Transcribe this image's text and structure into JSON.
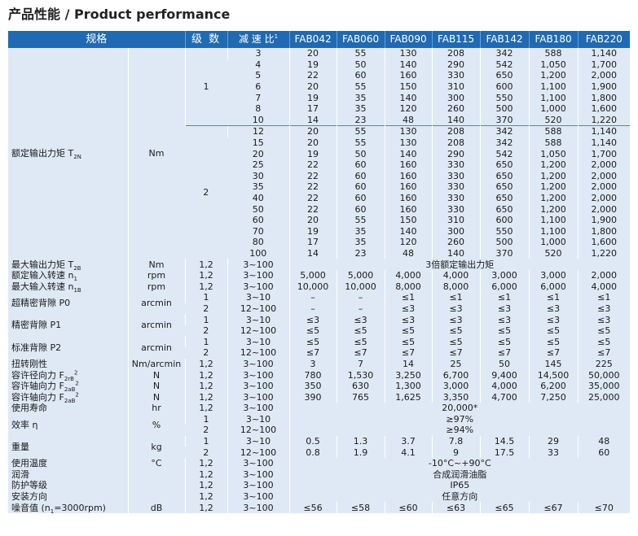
{
  "title": "产品性能 / Product performance",
  "headers": [
    "规格",
    "级 数",
    "减 速 比",
    "FAB042",
    "FAB060",
    "FAB090",
    "FAB115",
    "FAB142",
    "FAB180",
    "FAB220"
  ],
  "ratio_superscript": "1",
  "torque": {
    "param": "额定输出力矩 T",
    "param_sub": "2N",
    "unit": "Nm",
    "stage1": "1",
    "stage2": "2",
    "rows": [
      [
        "3",
        "20",
        "55",
        "130",
        "208",
        "342",
        "588",
        "1,140"
      ],
      [
        "4",
        "19",
        "50",
        "140",
        "290",
        "542",
        "1,050",
        "1,700"
      ],
      [
        "5",
        "22",
        "60",
        "160",
        "330",
        "650",
        "1,200",
        "2,000"
      ],
      [
        "6",
        "20",
        "55",
        "150",
        "310",
        "600",
        "1,100",
        "1,900"
      ],
      [
        "7",
        "19",
        "35",
        "140",
        "300",
        "550",
        "1,100",
        "1,800"
      ],
      [
        "8",
        "17",
        "35",
        "120",
        "260",
        "500",
        "1,000",
        "1,600"
      ],
      [
        "10",
        "14",
        "23",
        "48",
        "140",
        "370",
        "520",
        "1,220"
      ],
      [
        "12",
        "20",
        "55",
        "130",
        "208",
        "342",
        "588",
        "1,140"
      ],
      [
        "15",
        "20",
        "55",
        "130",
        "208",
        "342",
        "588",
        "1,140"
      ],
      [
        "20",
        "19",
        "50",
        "140",
        "290",
        "542",
        "1,050",
        "1,700"
      ],
      [
        "25",
        "22",
        "60",
        "160",
        "330",
        "650",
        "1,200",
        "2,000"
      ],
      [
        "30",
        "22",
        "60",
        "160",
        "330",
        "650",
        "1,200",
        "2,000"
      ],
      [
        "35",
        "22",
        "60",
        "160",
        "330",
        "650",
        "1,200",
        "2,000"
      ],
      [
        "40",
        "22",
        "60",
        "160",
        "330",
        "650",
        "1,200",
        "2,000"
      ],
      [
        "50",
        "22",
        "60",
        "160",
        "330",
        "650",
        "1,200",
        "2,000"
      ],
      [
        "60",
        "20",
        "55",
        "150",
        "310",
        "600",
        "1,100",
        "1,900"
      ],
      [
        "70",
        "19",
        "35",
        "140",
        "300",
        "550",
        "1,100",
        "1,800"
      ],
      [
        "80",
        "17",
        "35",
        "120",
        "260",
        "500",
        "1,000",
        "1,600"
      ],
      [
        "100",
        "14",
        "23",
        "48",
        "140",
        "370",
        "520",
        "1,220"
      ]
    ]
  },
  "max_torque": {
    "param": "最大输出力矩 T",
    "param_sub": "2B",
    "unit": "Nm",
    "stage": "1,2",
    "ratio": "3~100",
    "value": "3倍额定输出力矩"
  },
  "rated_speed": {
    "param": "额定输入转速 n",
    "param_sub": "1",
    "unit": "rpm",
    "stage": "1,2",
    "ratio": "3~100",
    "values": [
      "5,000",
      "5,000",
      "4,000",
      "4,000",
      "3,000",
      "3,000",
      "2,000"
    ]
  },
  "max_speed": {
    "param": "最大输入转速 n",
    "param_sub": "1B",
    "unit": "rpm",
    "stage": "1,2",
    "ratio": "3~100",
    "values": [
      "10,000",
      "10,000",
      "8,000",
      "8,000",
      "6,000",
      "6,000",
      "4,000"
    ]
  },
  "backlash_p0": {
    "param": "超精密背隙 P0",
    "unit": "arcmin",
    "rows": [
      {
        "stage": "1",
        "ratio": "3~10",
        "values": [
          "–",
          "–",
          "≤1",
          "≤1",
          "≤1",
          "≤1",
          "≤1"
        ]
      },
      {
        "stage": "2",
        "ratio": "12~100",
        "values": [
          "–",
          "–",
          "≤3",
          "≤3",
          "≤3",
          "≤3",
          "≤3"
        ]
      }
    ]
  },
  "backlash_p1": {
    "param": "精密背隙 P1",
    "unit": "arcmin",
    "rows": [
      {
        "stage": "1",
        "ratio": "3~10",
        "values": [
          "≤3",
          "≤3",
          "≤3",
          "≤3",
          "≤3",
          "≤3",
          "≤3"
        ]
      },
      {
        "stage": "2",
        "ratio": "12~100",
        "values": [
          "≤5",
          "≤5",
          "≤5",
          "≤5",
          "≤5",
          "≤5",
          "≤5"
        ]
      }
    ]
  },
  "backlash_p2": {
    "param": "标准背隙 P2",
    "unit": "arcmin",
    "rows": [
      {
        "stage": "1",
        "ratio": "3~10",
        "values": [
          "≤5",
          "≤5",
          "≤5",
          "≤5",
          "≤5",
          "≤5",
          "≤5"
        ]
      },
      {
        "stage": "2",
        "ratio": "12~100",
        "values": [
          "≤7",
          "≤7",
          "≤7",
          "≤7",
          "≤7",
          "≤7",
          "≤7"
        ]
      }
    ]
  },
  "rigidity": {
    "param": "扭转刚性",
    "unit": "Nm/arcmin",
    "stage": "1,2",
    "ratio": "3~100",
    "values": [
      "3",
      "7",
      "14",
      "25",
      "50",
      "145",
      "225"
    ]
  },
  "radial_force": {
    "param": "容许径向力 F",
    "param_sub": "2rB",
    "param_sup": "2",
    "unit": "N",
    "stage": "1,2",
    "ratio": "3~100",
    "values": [
      "780",
      "1,530",
      "3,250",
      "6,700",
      "9,400",
      "14,500",
      "50,000"
    ]
  },
  "axial_force1": {
    "param": "容许轴向力 F",
    "param_sub": "2aB",
    "param_sup": "2",
    "unit": "N",
    "stage": "1,2",
    "ratio": "3~100",
    "values": [
      "350",
      "630",
      "1,300",
      "3,000",
      "4,000",
      "6,200",
      "35,000"
    ]
  },
  "axial_force2": {
    "param": "容许轴向力 F",
    "param_sub": "2aB",
    "param_sup": "2",
    "unit": "N",
    "stage": "1,2",
    "ratio": "3~100",
    "values": [
      "390",
      "765",
      "1,625",
      "3,350",
      "4,700",
      "7,250",
      "25,000"
    ]
  },
  "life": {
    "param": "使用寿命",
    "unit": "hr",
    "stage": "1,2",
    "ratio": "3~100",
    "value": "20,000",
    "value_mark": "*"
  },
  "efficiency": {
    "param": "效率 η",
    "unit": "%",
    "rows": [
      {
        "stage": "1",
        "ratio": "3~10",
        "value": "≥97%"
      },
      {
        "stage": "2",
        "ratio": "12~100",
        "value": "≥94%"
      }
    ]
  },
  "weight": {
    "param": "重量",
    "unit": "kg",
    "rows": [
      {
        "stage": "1",
        "ratio": "3~10",
        "values": [
          "0.5",
          "1.3",
          "3.7",
          "7.8",
          "14.5",
          "29",
          "48"
        ]
      },
      {
        "stage": "2",
        "ratio": "12~100",
        "values": [
          "0.8",
          "1.9",
          "4.1",
          "9",
          "17.5",
          "33",
          "60"
        ]
      }
    ]
  },
  "temperature": {
    "param": "使用温度",
    "unit": "°C",
    "stage": "1,2",
    "ratio": "3~100",
    "value": "-10°C~+90°C"
  },
  "lubrication": {
    "param": "润滑",
    "unit": "",
    "stage": "1,2",
    "ratio": "3~100",
    "value": "合成润滑油脂"
  },
  "protection": {
    "param": "防护等级",
    "unit": "",
    "stage": "1,2",
    "ratio": "3~100",
    "value": "IP65"
  },
  "mounting": {
    "param": "安装方向",
    "unit": "",
    "stage": "1,2",
    "ratio": "3~100",
    "value": "任意方向"
  },
  "noise": {
    "param": "噪音值 (n",
    "param_sub": "1",
    "param_tail": "=3000rpm)",
    "unit": "dB",
    "stage": "1,2",
    "ratio": "3~100",
    "values": [
      "≤56",
      "≤58",
      "≤60",
      "≤63",
      "≤65",
      "≤67",
      "≤70"
    ]
  }
}
